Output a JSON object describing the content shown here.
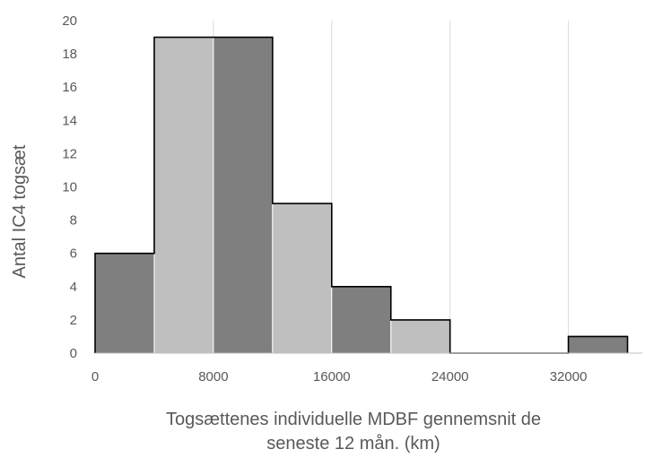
{
  "chart_data": {
    "type": "bar",
    "subtype": "histogram",
    "bins": [
      {
        "x0": 0,
        "x1": 4000,
        "value": 6
      },
      {
        "x0": 4000,
        "x1": 8000,
        "value": 19
      },
      {
        "x0": 8000,
        "x1": 12000,
        "value": 19
      },
      {
        "x0": 12000,
        "x1": 16000,
        "value": 9
      },
      {
        "x0": 16000,
        "x1": 20000,
        "value": 4
      },
      {
        "x0": 20000,
        "x1": 24000,
        "value": 2
      },
      {
        "x0": 24000,
        "x1": 28000,
        "value": 0
      },
      {
        "x0": 28000,
        "x1": 32000,
        "value": 0
      },
      {
        "x0": 32000,
        "x1": 36000,
        "value": 1
      }
    ],
    "xlabel_lines": [
      "Togsættenes individuelle MDBF gennemsnit de",
      "seneste 12 mån. (km)"
    ],
    "ylabel": "Antal IC4 togsæt",
    "xlim": [
      0,
      37000
    ],
    "ylim": [
      0,
      20
    ],
    "xticks": [
      0,
      8000,
      16000,
      24000,
      32000
    ],
    "yticks": [
      0,
      2,
      4,
      6,
      8,
      10,
      12,
      14,
      16,
      18,
      20
    ],
    "grid": {
      "vertical": true,
      "horizontal": false
    },
    "colors": {
      "dark": "#7f7f7f",
      "light": "#bfbfbf",
      "grid": "#d9d9d9",
      "outline": "#000000"
    }
  }
}
